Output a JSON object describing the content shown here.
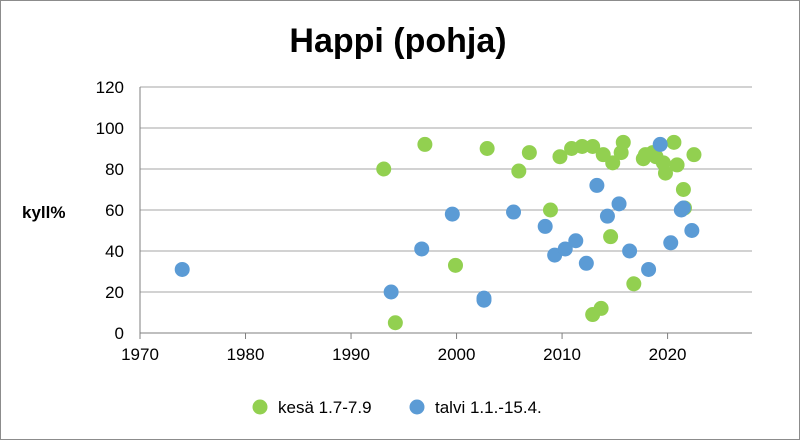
{
  "chart_data": {
    "type": "scatter",
    "title": "Happi (pohja)",
    "xlabel": "",
    "ylabel": "kyll%",
    "xlim": [
      1970,
      2028
    ],
    "ylim": [
      0,
      120
    ],
    "xticks": [
      1970,
      1980,
      1990,
      2000,
      2010,
      2020
    ],
    "yticks": [
      0,
      20,
      40,
      60,
      80,
      100,
      120
    ],
    "grid": "horizontal",
    "legend_position": "bottom",
    "series": [
      {
        "name": "kesä 1.7-7.9",
        "color": "#92d050",
        "points": [
          [
            1993.1,
            80
          ],
          [
            1994.2,
            5
          ],
          [
            1997.0,
            92
          ],
          [
            1999.9,
            33
          ],
          [
            2002.9,
            90
          ],
          [
            2005.9,
            79
          ],
          [
            2006.9,
            88
          ],
          [
            2008.9,
            60
          ],
          [
            2009.8,
            86
          ],
          [
            2010.9,
            90
          ],
          [
            2011.9,
            91
          ],
          [
            2012.9,
            91
          ],
          [
            2012.9,
            9
          ],
          [
            2013.7,
            12
          ],
          [
            2013.9,
            87
          ],
          [
            2014.6,
            47
          ],
          [
            2014.8,
            83
          ],
          [
            2015.6,
            88
          ],
          [
            2015.8,
            93
          ],
          [
            2016.8,
            24
          ],
          [
            2017.7,
            85
          ],
          [
            2017.9,
            87
          ],
          [
            2018.6,
            88
          ],
          [
            2018.9,
            86
          ],
          [
            2019.6,
            83
          ],
          [
            2019.8,
            78
          ],
          [
            2020.6,
            93
          ],
          [
            2020.9,
            82
          ],
          [
            2021.5,
            70
          ],
          [
            2021.6,
            61
          ],
          [
            2022.5,
            87
          ]
        ]
      },
      {
        "name": "talvi 1.1.-15.4.",
        "color": "#5b9bd5",
        "points": [
          [
            1974.0,
            31
          ],
          [
            1993.8,
            20
          ],
          [
            1996.7,
            41
          ],
          [
            1999.6,
            58
          ],
          [
            2002.6,
            17
          ],
          [
            2002.6,
            16
          ],
          [
            2005.4,
            59
          ],
          [
            2008.4,
            52
          ],
          [
            2009.3,
            38
          ],
          [
            2010.3,
            41
          ],
          [
            2011.3,
            45
          ],
          [
            2012.3,
            34
          ],
          [
            2013.3,
            72
          ],
          [
            2014.3,
            57
          ],
          [
            2015.4,
            63
          ],
          [
            2016.4,
            40
          ],
          [
            2018.2,
            31
          ],
          [
            2019.3,
            92
          ],
          [
            2020.3,
            44
          ],
          [
            2021.3,
            60
          ],
          [
            2021.5,
            61
          ],
          [
            2022.3,
            50
          ]
        ]
      }
    ]
  }
}
